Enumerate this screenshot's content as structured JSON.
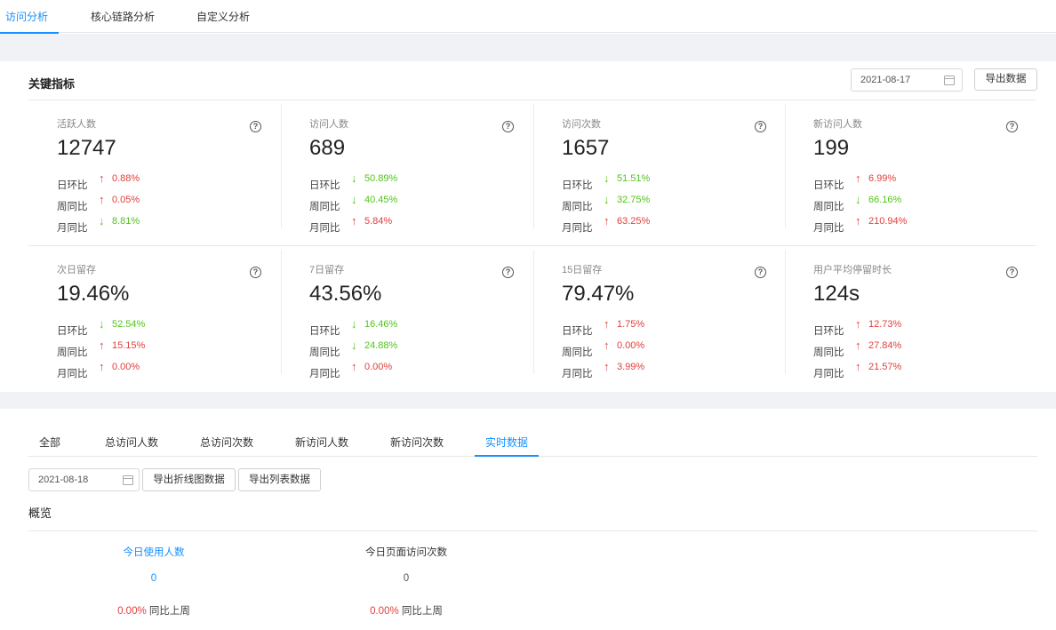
{
  "top_tabs": [
    {
      "label": "访问分析",
      "active": true
    },
    {
      "label": "核心链路分析",
      "active": false
    },
    {
      "label": "自定义分析",
      "active": false
    }
  ],
  "key_metrics": {
    "title": "关键指标",
    "date": "2021-08-17",
    "export_label": "导出数据",
    "cmp_labels": [
      "日环比",
      "周同比",
      "月同比"
    ],
    "items": [
      {
        "title": "活跃人数",
        "value": "12747",
        "rows": [
          {
            "dir": "up",
            "pct": "0.88%"
          },
          {
            "dir": "up",
            "pct": "0.05%"
          },
          {
            "dir": "down",
            "pct": "8.81%"
          }
        ]
      },
      {
        "title": "访问人数",
        "value": "689",
        "rows": [
          {
            "dir": "down",
            "pct": "50.89%"
          },
          {
            "dir": "down",
            "pct": "40.45%"
          },
          {
            "dir": "up",
            "pct": "5.84%"
          }
        ]
      },
      {
        "title": "访问次数",
        "value": "1657",
        "rows": [
          {
            "dir": "down",
            "pct": "51.51%"
          },
          {
            "dir": "down",
            "pct": "32.75%"
          },
          {
            "dir": "up",
            "pct": "63.25%"
          }
        ]
      },
      {
        "title": "新访问人数",
        "value": "199",
        "rows": [
          {
            "dir": "up",
            "pct": "6.99%"
          },
          {
            "dir": "down",
            "pct": "66.16%"
          },
          {
            "dir": "up",
            "pct": "210.94%"
          }
        ]
      },
      {
        "title": "次日留存",
        "value": "19.46%",
        "rows": [
          {
            "dir": "down",
            "pct": "52.54%"
          },
          {
            "dir": "up",
            "pct": "15.15%"
          },
          {
            "dir": "up",
            "pct": "0.00%"
          }
        ]
      },
      {
        "title": "7日留存",
        "value": "43.56%",
        "rows": [
          {
            "dir": "down",
            "pct": "16.46%"
          },
          {
            "dir": "down",
            "pct": "24.88%"
          },
          {
            "dir": "up",
            "pct": "0.00%"
          }
        ]
      },
      {
        "title": "15日留存",
        "value": "79.47%",
        "rows": [
          {
            "dir": "up",
            "pct": "1.75%"
          },
          {
            "dir": "up",
            "pct": "0.00%"
          },
          {
            "dir": "up",
            "pct": "3.99%"
          }
        ]
      },
      {
        "title": "用户平均停留时长",
        "value": "124s",
        "rows": [
          {
            "dir": "up",
            "pct": "12.73%"
          },
          {
            "dir": "up",
            "pct": "27.84%"
          },
          {
            "dir": "up",
            "pct": "21.57%"
          }
        ]
      }
    ]
  },
  "detail": {
    "tabs": [
      {
        "label": "全部",
        "active": false
      },
      {
        "label": "总访问人数",
        "active": false
      },
      {
        "label": "总访问次数",
        "active": false
      },
      {
        "label": "新访问人数",
        "active": false
      },
      {
        "label": "新访问次数",
        "active": false
      },
      {
        "label": "实时数据",
        "active": true
      }
    ],
    "date": "2021-08-18",
    "export_line_label": "导出折线图数据",
    "export_list_label": "导出列表数据",
    "overview_title": "概览",
    "overview": [
      {
        "label": "今日使用人数",
        "value": "0",
        "pct": "0.00%",
        "cmp": "同比上周",
        "highlight": true
      },
      {
        "label": "今日页面访问次数",
        "value": "0",
        "pct": "0.00%",
        "cmp": "同比上周",
        "highlight": false
      }
    ]
  },
  "colors": {
    "accent": "#1890ff",
    "up": "#e0403d",
    "down": "#52c41a",
    "bg": "#f0f2f5"
  },
  "icons": {
    "calendar": "calendar-icon",
    "help": "question-circle-icon",
    "up": "arrow-up-icon",
    "down": "arrow-down-icon"
  }
}
